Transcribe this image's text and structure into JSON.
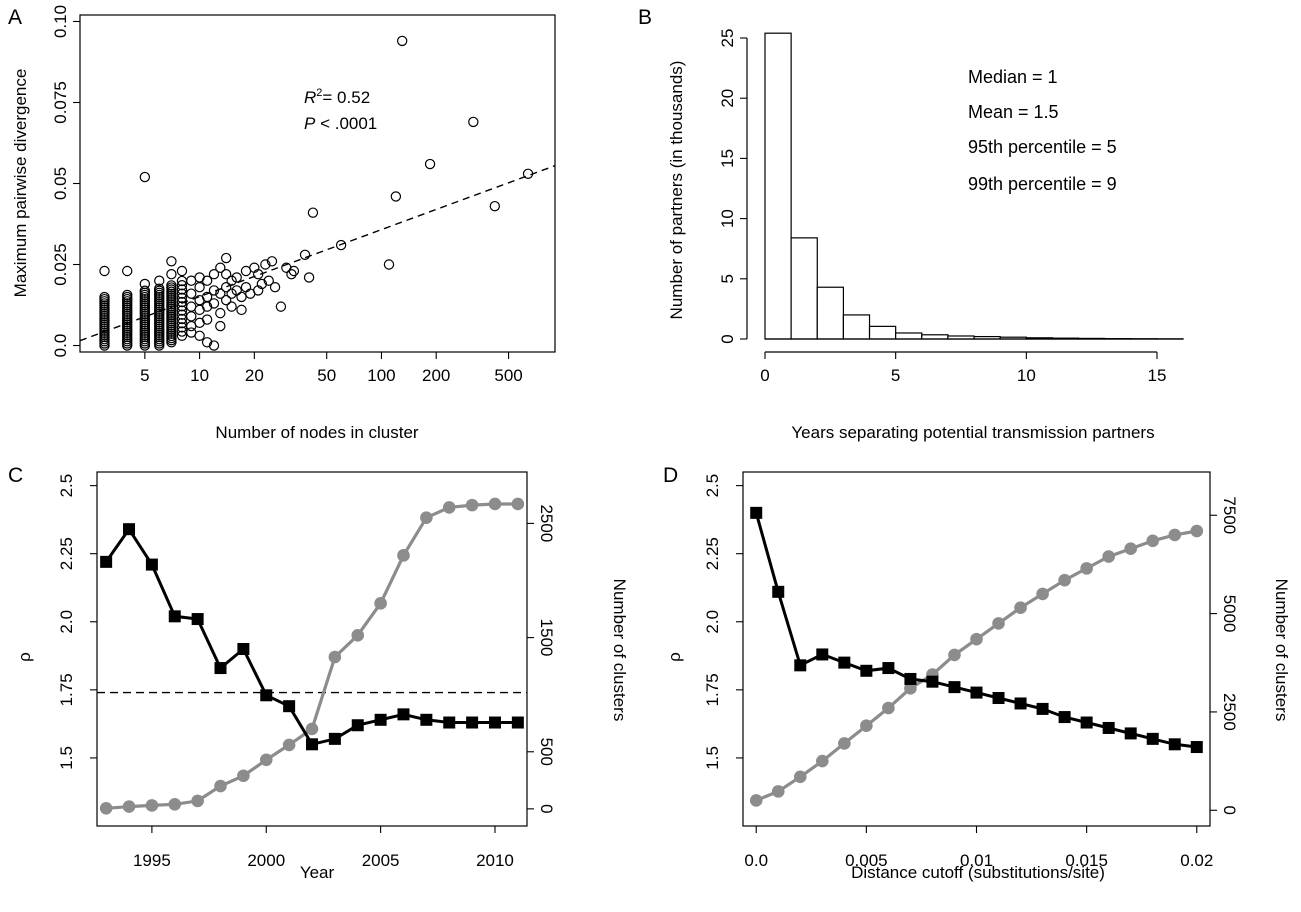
{
  "chart_data": [
    {
      "panel": "A",
      "type": "scatter",
      "xlabel": "Number of nodes in cluster",
      "ylabel": "Maximum pairwise divergence",
      "x_scale": "log",
      "xlim": [
        2.2,
        900
      ],
      "ylim": [
        -0.002,
        0.102
      ],
      "x_ticks": [
        5,
        10,
        20,
        50,
        100,
        200,
        500
      ],
      "y_ticks": [
        "0.0",
        "0.025",
        "0.05",
        "0.075",
        "0.10"
      ],
      "y_tick_values": [
        0,
        0.025,
        0.05,
        0.075,
        0.1
      ],
      "annotation_r2_label": "R",
      "annotation_r2_exp": "2",
      "annotation_r2_value": "= 0.52",
      "annotation_p_label": "P",
      "annotation_p_value": " < .0001",
      "fit_line": {
        "style": "dashed",
        "x": [
          2.2,
          900
        ],
        "y": [
          0.0015,
          0.0555
        ]
      },
      "columns": [
        {
          "x": 3,
          "y_min": 0.0,
          "y_max": 0.015,
          "step": 0.00065
        },
        {
          "x": 4,
          "y_min": 0.0,
          "y_max": 0.016,
          "step": 0.00065
        },
        {
          "x": 5,
          "y_min": 0.0,
          "y_max": 0.017,
          "step": 0.00065
        },
        {
          "x": 6,
          "y_min": 0.0,
          "y_max": 0.018,
          "step": 0.00065
        },
        {
          "x": 7,
          "y_min": 0.001,
          "y_max": 0.019,
          "step": 0.00065
        },
        {
          "x": 8,
          "y_min": 0.003,
          "y_max": 0.021,
          "step": 0.0013
        }
      ],
      "points": [
        [
          3,
          0.023
        ],
        [
          4,
          0.023
        ],
        [
          5,
          0.052
        ],
        [
          5,
          0.019
        ],
        [
          6,
          0.02
        ],
        [
          7,
          0.026
        ],
        [
          7,
          0.022
        ],
        [
          8,
          0.023
        ],
        [
          9,
          0.02
        ],
        [
          9,
          0.016
        ],
        [
          9,
          0.012
        ],
        [
          9,
          0.009
        ],
        [
          9,
          0.006
        ],
        [
          9,
          0.004
        ],
        [
          10,
          0.021
        ],
        [
          10,
          0.018
        ],
        [
          10,
          0.014
        ],
        [
          10,
          0.011
        ],
        [
          10,
          0.007
        ],
        [
          10,
          0.003
        ],
        [
          11,
          0.02
        ],
        [
          11,
          0.015
        ],
        [
          11,
          0.012
        ],
        [
          11,
          0.008
        ],
        [
          11,
          0.001
        ],
        [
          12,
          0.022
        ],
        [
          12,
          0.017
        ],
        [
          12,
          0.013
        ],
        [
          12,
          0.0
        ],
        [
          13,
          0.024
        ],
        [
          13,
          0.016
        ],
        [
          13,
          0.01
        ],
        [
          13,
          0.006
        ],
        [
          14,
          0.027
        ],
        [
          14,
          0.022
        ],
        [
          14,
          0.018
        ],
        [
          14,
          0.014
        ],
        [
          15,
          0.02
        ],
        [
          15,
          0.016
        ],
        [
          15,
          0.012
        ],
        [
          16,
          0.021
        ],
        [
          16,
          0.017
        ],
        [
          17,
          0.015
        ],
        [
          17,
          0.011
        ],
        [
          18,
          0.023
        ],
        [
          18,
          0.018
        ],
        [
          19,
          0.016
        ],
        [
          20,
          0.024
        ],
        [
          21,
          0.022
        ],
        [
          21,
          0.017
        ],
        [
          22,
          0.019
        ],
        [
          23,
          0.025
        ],
        [
          24,
          0.02
        ],
        [
          25,
          0.026
        ],
        [
          26,
          0.018
        ],
        [
          28,
          0.012
        ],
        [
          30,
          0.024
        ],
        [
          32,
          0.022
        ],
        [
          33,
          0.023
        ],
        [
          38,
          0.028
        ],
        [
          40,
          0.021
        ],
        [
          42,
          0.041
        ],
        [
          60,
          0.031
        ],
        [
          110,
          0.025
        ],
        [
          120,
          0.046
        ],
        [
          130,
          0.094
        ],
        [
          185,
          0.056
        ],
        [
          320,
          0.069
        ],
        [
          420,
          0.043
        ],
        [
          640,
          0.053
        ]
      ]
    },
    {
      "panel": "B",
      "type": "bar",
      "xlabel": "Years separating potential transmission partners",
      "ylabel": "Number of partners (in thousands)",
      "xlim": [
        0,
        16
      ],
      "ylim": [
        0,
        26
      ],
      "x_ticks": [
        0,
        5,
        10,
        15
      ],
      "y_ticks": [
        0,
        5,
        10,
        15,
        20,
        25
      ],
      "bins": [
        [
          0,
          1,
          25.4
        ],
        [
          1,
          2,
          8.4
        ],
        [
          2,
          3,
          4.3
        ],
        [
          3,
          4,
          2.0
        ],
        [
          4,
          5,
          1.05
        ],
        [
          5,
          6,
          0.5
        ],
        [
          6,
          7,
          0.35
        ],
        [
          7,
          8,
          0.25
        ],
        [
          8,
          9,
          0.2
        ],
        [
          9,
          10,
          0.15
        ],
        [
          10,
          11,
          0.1
        ],
        [
          11,
          12,
          0.07
        ],
        [
          12,
          13,
          0.05
        ],
        [
          13,
          14,
          0.03
        ],
        [
          14,
          15,
          0.02
        ],
        [
          15,
          16,
          0.01
        ]
      ],
      "annotations": [
        "Median = 1",
        "Mean = 1.5",
        "95th percentile = 5",
        "99th percentile = 9"
      ]
    },
    {
      "panel": "C",
      "type": "line",
      "xlabel": "Year",
      "ylabel": "ρ",
      "ylabel_right": "Number of clusters",
      "xlim": [
        1992.6,
        2011.4
      ],
      "ylim": [
        1.25,
        2.55
      ],
      "ylim_right": [
        -150,
        2950
      ],
      "x_ticks": [
        1995,
        2000,
        2005,
        2010
      ],
      "y_ticks": [
        "1.5",
        "1.75",
        "2.0",
        "2.25",
        "2.5"
      ],
      "y_tick_values": [
        1.5,
        1.75,
        2.0,
        2.25,
        2.5
      ],
      "y_ticks_right": [
        0,
        500,
        1500,
        2500
      ],
      "reference_line": {
        "y": 1.74,
        "style": "dashed"
      },
      "x": [
        1993,
        1994,
        1995,
        1996,
        1997,
        1998,
        1999,
        2000,
        2001,
        2002,
        2003,
        2004,
        2005,
        2006,
        2007,
        2008,
        2009,
        2010,
        2011
      ],
      "series": [
        {
          "axis": "left",
          "color": "#000000",
          "marker": "square",
          "values": [
            2.22,
            2.34,
            2.21,
            2.02,
            2.01,
            1.83,
            1.9,
            1.73,
            1.69,
            1.55,
            1.57,
            1.62,
            1.64,
            1.66,
            1.64,
            1.63,
            1.63,
            1.63,
            1.63
          ]
        },
        {
          "axis": "right",
          "color": "#8c8c8c",
          "marker": "circle",
          "values": [
            5,
            20,
            30,
            40,
            70,
            200,
            290,
            430,
            560,
            700,
            1330,
            1520,
            1800,
            2220,
            2550,
            2640,
            2660,
            2670,
            2670
          ]
        }
      ]
    },
    {
      "panel": "D",
      "type": "line",
      "xlabel": "Distance cutoff (substitutions/site)",
      "ylabel": "ρ",
      "ylabel_right": "Number of clusters",
      "xlim": [
        -0.0006,
        0.0206
      ],
      "ylim": [
        1.25,
        2.55
      ],
      "ylim_right": [
        -400,
        8600
      ],
      "x_ticks": [
        "0.0",
        "0.005",
        "0.01",
        "0.015",
        "0.02"
      ],
      "x_tick_values": [
        0,
        0.005,
        0.01,
        0.015,
        0.02
      ],
      "y_ticks": [
        "1.5",
        "1.75",
        "2.0",
        "2.25",
        "2.5"
      ],
      "y_tick_values": [
        1.5,
        1.75,
        2.0,
        2.25,
        2.5
      ],
      "y_ticks_right": [
        0,
        2500,
        5000,
        7500
      ],
      "x": [
        0,
        0.001,
        0.002,
        0.003,
        0.004,
        0.005,
        0.006,
        0.007,
        0.008,
        0.009,
        0.01,
        0.011,
        0.012,
        0.013,
        0.014,
        0.015,
        0.016,
        0.017,
        0.018,
        0.019,
        0.02
      ],
      "series": [
        {
          "axis": "left",
          "color": "#000000",
          "marker": "square",
          "values": [
            2.4,
            2.11,
            1.84,
            1.88,
            1.85,
            1.82,
            1.83,
            1.79,
            1.78,
            1.76,
            1.74,
            1.72,
            1.7,
            1.68,
            1.65,
            1.63,
            1.61,
            1.59,
            1.57,
            1.55,
            1.54
          ]
        },
        {
          "axis": "right",
          "color": "#8c8c8c",
          "marker": "circle",
          "values": [
            250,
            480,
            850,
            1250,
            1700,
            2150,
            2600,
            3100,
            3450,
            3950,
            4350,
            4750,
            5150,
            5500,
            5850,
            6150,
            6450,
            6650,
            6850,
            7000,
            7100
          ]
        }
      ]
    }
  ]
}
